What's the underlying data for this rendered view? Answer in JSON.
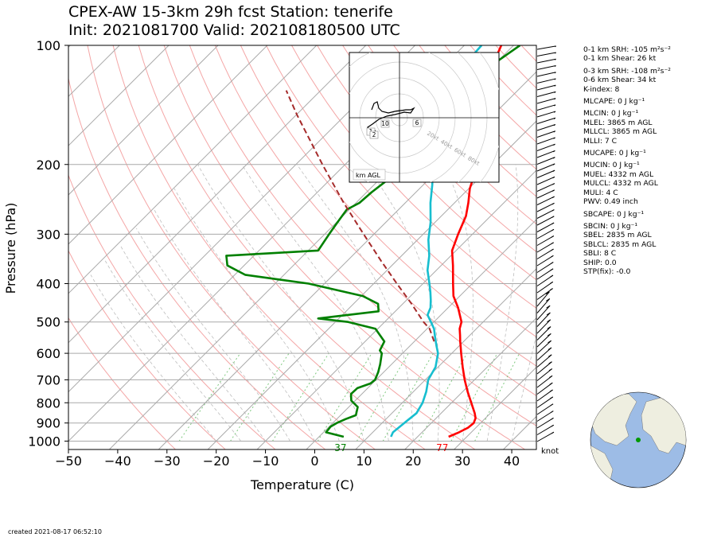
{
  "title": {
    "line1": "CPEX-AW 15-3km  29h fcst  Station: tenerife",
    "line2": "Init: 2021081700  Valid: 202108180500 UTC"
  },
  "footer": {
    "created": "created 2021-08-17 06:52:10"
  },
  "params": [
    "0-1 km SRH: -105 m²s⁻²",
    "0-1 km Shear: 26 kt",
    "0-3 km SRH: -108 m²s⁻²",
    "0-6 km Shear: 34 kt",
    "K-index: 8",
    "MLCAPE: 0 J kg⁻¹",
    "MLCIN: 0 J kg⁻¹",
    "MLEL: 3865 m AGL",
    "MLLCL: 3865 m AGL",
    "MLLI: 7 C",
    "MUCAPE: 0 J kg⁻¹",
    "MUCIN: 0 J kg⁻¹",
    "MUEL: 4332 m AGL",
    "MULCL: 4332 m AGL",
    "MULI: 4 C",
    "PWV: 0.49 inch",
    "SBCAPE: 0 J kg⁻¹",
    "SBCIN: 0 J kg⁻¹",
    "SBEL: 2835 m AGL",
    "SBLCL: 2835 m AGL",
    "SBLI: 8 C",
    "SHIP: 0.0",
    "STP(fix): -0.0"
  ],
  "hodograph": {
    "label": "km AGL",
    "ring_labels": [
      "20kt",
      "40kt",
      "60kt",
      "80kt"
    ],
    "height_labels": [
      "10",
      "6",
      "1",
      "2"
    ],
    "points": [
      [
        -35,
        10
      ],
      [
        -32,
        18
      ],
      [
        -28,
        20
      ],
      [
        -26,
        12
      ],
      [
        -22,
        8
      ],
      [
        -14,
        6
      ],
      [
        -6,
        8
      ],
      [
        2,
        9
      ],
      [
        8,
        10
      ],
      [
        14,
        10
      ],
      [
        18,
        12
      ],
      [
        14,
        6
      ],
      [
        6,
        7
      ],
      [
        -6,
        4
      ],
      [
        -16,
        2
      ],
      [
        -26,
        -2
      ],
      [
        -34,
        -8
      ],
      [
        -40,
        -12
      ],
      [
        -36,
        -20
      ],
      [
        -30,
        -16
      ]
    ]
  },
  "surface_labels": {
    "dewpoint": "37",
    "temperature": "77"
  },
  "knot_label": "knot",
  "colors": {
    "temperature": "#ff0000",
    "dewpoint": "#008000",
    "wetbulb": "#17becf",
    "parcel": "#a52a2a",
    "isobar": "#a9a9a9",
    "isotherm": "#a9a9a9",
    "dry_adiabat": "#f4a6a6",
    "moist_adiabat": "#bdbdbd",
    "mixing_ratio": "#7fc97f",
    "map_land": "#eeeee0",
    "map_ocean": "#9dbce6",
    "station": "#009900"
  },
  "chart_data": {
    "type": "line",
    "xlabel": "Temperature (C)",
    "ylabel": "Pressure (hPa)",
    "xlim": [
      -50,
      45
    ],
    "ylim": [
      1050,
      100
    ],
    "y_scale": "log",
    "x_ticks": [
      -50,
      -40,
      -30,
      -20,
      -10,
      0,
      10,
      20,
      30,
      40
    ],
    "y_ticks": [
      100,
      200,
      300,
      400,
      500,
      600,
      700,
      800,
      900,
      1000
    ],
    "skew": true,
    "grid": true,
    "series": [
      {
        "key": "temperature",
        "points": [
          [
            975,
            26.3
          ],
          [
            950,
            27.5
          ],
          [
            925,
            28.4
          ],
          [
            900,
            28.6
          ],
          [
            875,
            28.0
          ],
          [
            850,
            26.8
          ],
          [
            800,
            24.0
          ],
          [
            750,
            21.0
          ],
          [
            700,
            18.0
          ],
          [
            650,
            15.0
          ],
          [
            600,
            11.9
          ],
          [
            575,
            10.3
          ],
          [
            560,
            9.3
          ],
          [
            540,
            8.0
          ],
          [
            520,
            6.6
          ],
          [
            500,
            5.6
          ],
          [
            460,
            2.0
          ],
          [
            430,
            -1.3
          ],
          [
            400,
            -3.9
          ],
          [
            360,
            -7.6
          ],
          [
            330,
            -10.8
          ],
          [
            300,
            -12.9
          ],
          [
            270,
            -15.0
          ],
          [
            250,
            -17.2
          ],
          [
            230,
            -19.8
          ],
          [
            200,
            -23.1
          ],
          [
            180,
            -26.2
          ],
          [
            160,
            -29.5
          ],
          [
            140,
            -33.5
          ],
          [
            120,
            -38.0
          ],
          [
            110,
            -40.6
          ],
          [
            100,
            -42.5
          ]
        ]
      },
      {
        "key": "dewpoint",
        "points": [
          [
            975,
            5.0
          ],
          [
            950,
            0.5
          ],
          [
            920,
            0.3
          ],
          [
            900,
            0.8
          ],
          [
            880,
            1.8
          ],
          [
            860,
            3.1
          ],
          [
            820,
            1.8
          ],
          [
            790,
            -0.8
          ],
          [
            760,
            -2.2
          ],
          [
            735,
            -2.1
          ],
          [
            715,
            -0.4
          ],
          [
            700,
            -0.2
          ],
          [
            670,
            -1.1
          ],
          [
            640,
            -2.3
          ],
          [
            600,
            -4.2
          ],
          [
            590,
            -5.2
          ],
          [
            560,
            -6.1
          ],
          [
            520,
            -10.5
          ],
          [
            500,
            -17.4
          ],
          [
            490,
            -24.2
          ],
          [
            470,
            -13.4
          ],
          [
            450,
            -15.0
          ],
          [
            430,
            -19.7
          ],
          [
            400,
            -33.2
          ],
          [
            380,
            -47.9
          ],
          [
            360,
            -53.4
          ],
          [
            340,
            -55.6
          ],
          [
            330,
            -38.0
          ],
          [
            300,
            -39.1
          ],
          [
            280,
            -39.8
          ],
          [
            260,
            -40.5
          ],
          [
            250,
            -39.3
          ],
          [
            235,
            -39.0
          ],
          [
            220,
            -38.3
          ],
          [
            200,
            -41.5
          ],
          [
            190,
            -40.0
          ],
          [
            170,
            -39.1
          ],
          [
            150,
            -40.1
          ],
          [
            130,
            -41.5
          ],
          [
            120,
            -41.7
          ],
          [
            110,
            -40.1
          ],
          [
            100,
            -38.7
          ]
        ]
      },
      {
        "key": "wetbulb",
        "points": [
          [
            975,
            14.6
          ],
          [
            950,
            14.1
          ],
          [
            900,
            14.5
          ],
          [
            850,
            15.0
          ],
          [
            800,
            14.1
          ],
          [
            750,
            12.6
          ],
          [
            700,
            10.6
          ],
          [
            650,
            9.5
          ],
          [
            600,
            7.2
          ],
          [
            575,
            5.4
          ],
          [
            550,
            3.6
          ],
          [
            520,
            1.4
          ],
          [
            500,
            -0.6
          ],
          [
            480,
            -2.7
          ],
          [
            460,
            -3.6
          ],
          [
            440,
            -5.1
          ],
          [
            420,
            -6.8
          ],
          [
            400,
            -8.7
          ],
          [
            370,
            -11.8
          ],
          [
            340,
            -14.4
          ],
          [
            310,
            -17.8
          ],
          [
            280,
            -20.9
          ],
          [
            250,
            -24.9
          ],
          [
            225,
            -28.2
          ],
          [
            200,
            -32.2
          ],
          [
            180,
            -35.0
          ],
          [
            160,
            -37.9
          ],
          [
            140,
            -41.0
          ],
          [
            120,
            -44.7
          ],
          [
            110,
            -46.1
          ],
          [
            100,
            -46.5
          ]
        ]
      },
      {
        "key": "parcel",
        "points": [
          [
            560,
            4.0
          ],
          [
            520,
            0.5
          ],
          [
            500,
            -2.1
          ],
          [
            450,
            -8.2
          ],
          [
            400,
            -15.3
          ],
          [
            350,
            -23.2
          ],
          [
            300,
            -32.1
          ],
          [
            250,
            -42.5
          ],
          [
            200,
            -54.6
          ],
          [
            150,
            -69.8
          ],
          [
            130,
            -77.0
          ]
        ]
      }
    ]
  }
}
